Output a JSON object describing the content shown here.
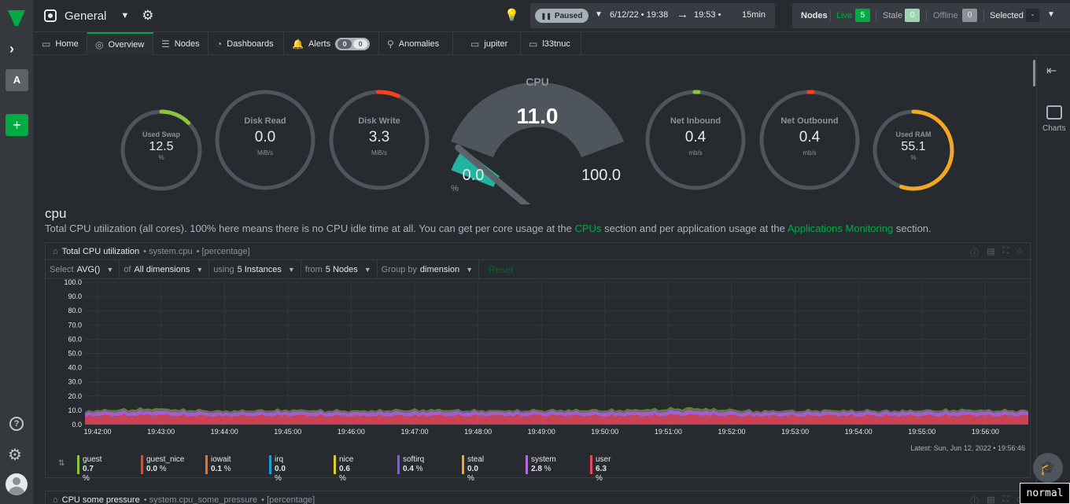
{
  "space": {
    "name": "General"
  },
  "time": {
    "paused_label": "Paused",
    "from": "6/12/22 • 19:38",
    "to": "19:53 •",
    "duration": "15min"
  },
  "nodes_bar": {
    "nodes_label": "Nodes",
    "live_label": "Live",
    "live_count": "5",
    "stale_label": "Stale",
    "stale_count": "0",
    "offline_label": "Offline",
    "offline_count": "0",
    "selected_label": "Selected",
    "selected_value": "-"
  },
  "tabs": [
    {
      "label": "Home"
    },
    {
      "label": "Overview"
    },
    {
      "label": "Nodes"
    },
    {
      "label": "Dashboards"
    },
    {
      "label": "Alerts",
      "critical": "0",
      "warning": "0"
    },
    {
      "label": "Anomalies"
    },
    {
      "label": "jupiter"
    },
    {
      "label": "l33tnuc"
    }
  ],
  "right_panel": {
    "charts_label": "Charts"
  },
  "gauges": {
    "used_swap": {
      "title": "Used Swap",
      "value": "12.5",
      "unit": "%",
      "fraction": 0.125,
      "color": "#8cc63f"
    },
    "disk_read": {
      "title": "Disk Read",
      "value": "0.0",
      "unit": "MiB/s"
    },
    "disk_write": {
      "title": "Disk Write",
      "value": "3.3",
      "unit": "MiB/s",
      "color": "#ff3e1e"
    },
    "cpu": {
      "title": "CPU",
      "value": "11.0",
      "min": "0.0",
      "max": "100.0",
      "unit": "%",
      "fraction": 0.11,
      "color": "#22b4a0"
    },
    "net_inbound": {
      "title": "Net Inbound",
      "value": "0.4",
      "unit": "mb/s",
      "color": "#8cc63f"
    },
    "net_outbound": {
      "title": "Net Outbound",
      "value": "0.4",
      "unit": "mb/s",
      "color": "#ff3e1e"
    },
    "used_ram": {
      "title": "Used RAM",
      "value": "55.1",
      "unit": "%",
      "fraction": 0.551,
      "color": "#f5a623"
    }
  },
  "section": {
    "title": "cpu",
    "desc_1": "Total CPU utilization (all cores). 100% here means there is no CPU idle time at all. You can get per core usage at the",
    "link_1": "CPUs",
    "desc_2": "section and per application usage at the",
    "link_2": "Applications Monitoring",
    "desc_3": "section."
  },
  "card": {
    "title": "Total CPU utilization",
    "context": "• system.cpu",
    "units": "• [percentage]",
    "select_label": "Select",
    "select_value": "AVG()",
    "of_label": "of",
    "of_value": "All dimensions",
    "using_label": "using",
    "using_value": "5 Instances",
    "from_label": "from",
    "from_value": "5 Nodes",
    "group_label": "Group by",
    "group_value": "dimension",
    "reset_label": "Reset",
    "latest": "Latest:  Sun, Jun 12, 2022 • 19:56:46"
  },
  "card2": {
    "title": "CPU some pressure",
    "context": "• system.cpu_some_pressure",
    "units": "• [percentage]"
  },
  "chart_data": {
    "type": "area",
    "ylim": [
      0,
      100
    ],
    "y_ticks": [
      "100.0",
      "90.0",
      "80.0",
      "70.0",
      "60.0",
      "50.0",
      "40.0",
      "30.0",
      "20.0",
      "10.0",
      "0.0"
    ],
    "x": [
      "19:42:00",
      "19:43:00",
      "19:44:00",
      "19:45:00",
      "19:46:00",
      "19:47:00",
      "19:48:00",
      "19:49:00",
      "19:50:00",
      "19:51:00",
      "19:52:00",
      "19:53:00",
      "19:54:00",
      "19:55:00",
      "19:56:00"
    ],
    "series": [
      {
        "name": "user",
        "color": "#e8485a",
        "values": [
          6.2,
          6.8,
          6.0,
          6.5,
          6.1,
          6.4,
          6.3,
          6.6,
          6.2,
          6.9,
          6.1,
          6.4,
          6.3,
          6.5,
          6.3
        ]
      },
      {
        "name": "system",
        "color": "#b86ae0",
        "values": [
          2.7,
          3.0,
          2.6,
          2.8,
          2.7,
          2.9,
          2.8,
          2.7,
          2.9,
          3.1,
          2.6,
          2.8,
          2.7,
          2.9,
          2.8
        ]
      },
      {
        "name": "softirq",
        "color": "#7a5cf0",
        "values": [
          0.4,
          0.5,
          0.4,
          0.4,
          0.4,
          0.5,
          0.4,
          0.4,
          0.4,
          0.5,
          0.4,
          0.4,
          0.4,
          0.4,
          0.4
        ]
      },
      {
        "name": "iowait",
        "color": "#e8741b",
        "values": [
          0.1,
          0.2,
          0.1,
          0.1,
          0.1,
          0.1,
          0.1,
          0.1,
          0.2,
          0.1,
          0.1,
          0.1,
          0.1,
          0.1,
          0.1
        ]
      },
      {
        "name": "nice",
        "color": "#6a9a1f",
        "values": [
          0.6,
          1.2,
          0.8,
          0.9,
          0.7,
          1.0,
          0.6,
          0.8,
          0.9,
          1.4,
          0.7,
          0.8,
          0.6,
          0.9,
          0.6
        ]
      }
    ]
  },
  "legend": [
    {
      "name": "guest",
      "value": "0.7",
      "unit": "%",
      "color": "#8cc63f"
    },
    {
      "name": "guest_nice",
      "value": "0.0",
      "unit": "%",
      "color": "#ff3e1e"
    },
    {
      "name": "iowait",
      "value": "0.1",
      "unit": "%",
      "color": "#e8741b"
    },
    {
      "name": "irq",
      "value": "0.0",
      "unit": "%",
      "color": "#1f9bd6"
    },
    {
      "name": "nice",
      "value": "0.6",
      "unit": "%",
      "color": "#d6d31f"
    },
    {
      "name": "softirq",
      "value": "0.4",
      "unit": "%",
      "color": "#7a5cf0"
    },
    {
      "name": "steal",
      "value": "0.0",
      "unit": "%",
      "color": "#f5a623"
    },
    {
      "name": "system",
      "value": "2.8",
      "unit": "%",
      "color": "#b86ae0"
    },
    {
      "name": "user",
      "value": "6.3",
      "unit": "%",
      "color": "#e8485a"
    }
  ],
  "mode_indicator": "normal"
}
